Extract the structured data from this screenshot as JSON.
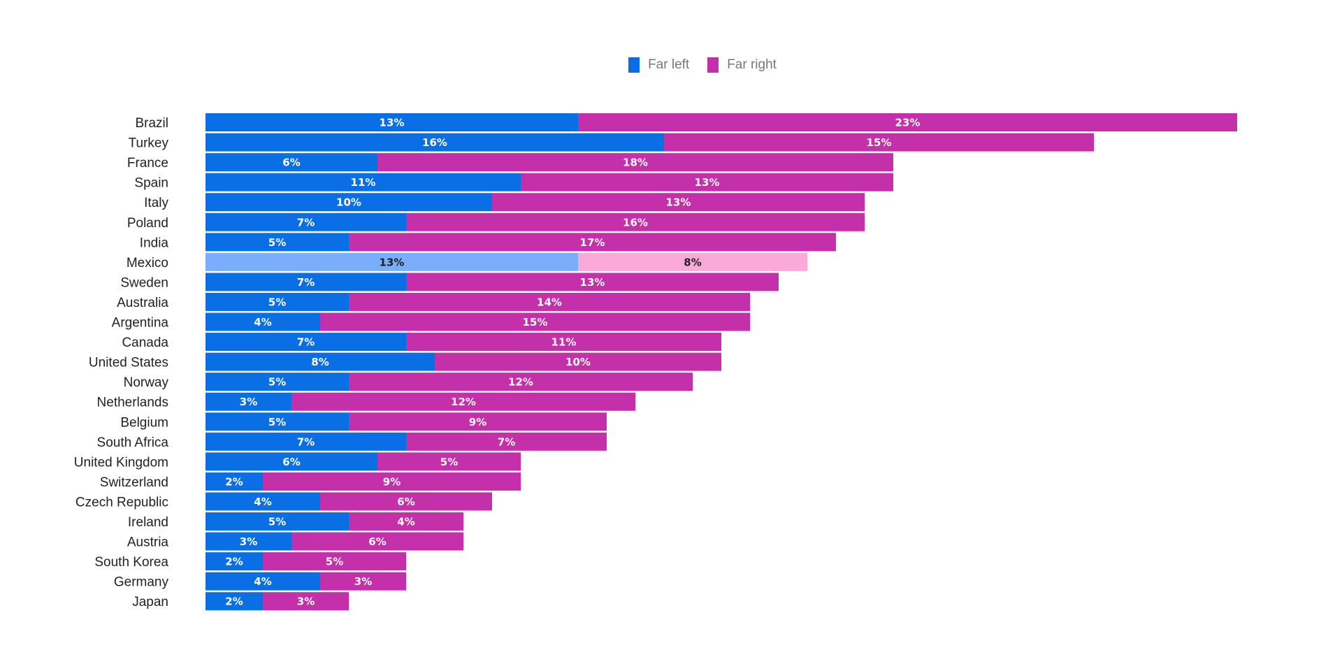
{
  "chart_data": {
    "type": "bar",
    "orientation": "horizontal",
    "stacked": true,
    "categories": [
      "Brazil",
      "Turkey",
      "France",
      "Spain",
      "Italy",
      "Poland",
      "India",
      "Mexico",
      "Sweden",
      "Australia",
      "Argentina",
      "Canada",
      "United States",
      "Norway",
      "Netherlands",
      "Belgium",
      "South Africa",
      "United Kingdom",
      "Switzerland",
      "Czech Republic",
      "Ireland",
      "Austria",
      "South Korea",
      "Germany",
      "Japan"
    ],
    "series": [
      {
        "name": "Far left",
        "color": "#0A6FE4",
        "values": [
          13,
          16,
          6,
          11,
          10,
          7,
          5,
          13,
          7,
          5,
          4,
          7,
          8,
          5,
          3,
          5,
          7,
          6,
          2,
          4,
          5,
          3,
          2,
          4,
          2
        ],
        "labels": [
          "13%",
          "16%",
          "6%",
          "11%",
          "10%",
          "7%",
          "5%",
          "13%",
          "7%",
          "5%",
          "4%",
          "7%",
          "8%",
          "5%",
          "3%",
          "5%",
          "7%",
          "6%",
          "2%",
          "4%",
          "5%",
          "3%",
          "2%",
          "4%",
          "2%"
        ]
      },
      {
        "name": "Far right",
        "color": "#C42FAA",
        "values": [
          23,
          15,
          18,
          13,
          13,
          16,
          17,
          8,
          13,
          14,
          15,
          11,
          10,
          12,
          12,
          9,
          7,
          5,
          9,
          6,
          4,
          6,
          5,
          3,
          3
        ],
        "labels": [
          "23%",
          "15%",
          "18%",
          "13%",
          "13%",
          "16%",
          "17%",
          "8%",
          "13%",
          "14%",
          "15%",
          "11%",
          "10%",
          "12%",
          "12%",
          "9%",
          "7%",
          "5%",
          "9%",
          "6%",
          "4%",
          "6%",
          "5%",
          "3%",
          "3%"
        ]
      }
    ],
    "highlight": {
      "category": "Mexico",
      "colors": [
        "#7AAEFA",
        "#FBA9D8"
      ],
      "label_color": "#222222"
    },
    "legend_position": "top-center",
    "grid": false,
    "title": "",
    "xlabel": "",
    "ylabel": ""
  }
}
